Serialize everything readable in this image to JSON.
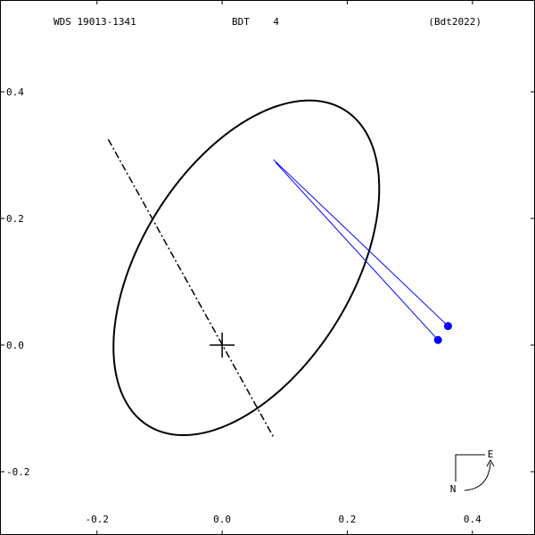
{
  "header": {
    "wds_id": "WDS 19013-1341",
    "discoverer": "BDT    4",
    "reference": "(Bdt2022)"
  },
  "compass": {
    "east_label": "E",
    "north_label": "N"
  },
  "chart_data": {
    "type": "scatter",
    "title": "",
    "xlabel": "",
    "ylabel": "",
    "xlim": [
      -0.355,
      0.5
    ],
    "ylim": [
      -0.3,
      0.545
    ],
    "grid": false,
    "x_ticks": [
      {
        "value": -0.2,
        "label": "-0.2"
      },
      {
        "value": 0.0,
        "label": "0.0"
      },
      {
        "value": 0.2,
        "label": "0.2"
      },
      {
        "value": 0.4,
        "label": "0.4"
      }
    ],
    "y_ticks": [
      {
        "value": 0.4,
        "label": "0.4"
      },
      {
        "value": 0.2,
        "label": "0.2"
      },
      {
        "value": 0.0,
        "label": "0.0"
      },
      {
        "value": -0.2,
        "label": "-0.2"
      }
    ],
    "primary": {
      "x": 0.0,
      "y": 0.0
    },
    "orbit_ellipse": {
      "center": {
        "x": 0.0387,
        "y": 0.122
      },
      "semi_major": 0.2946,
      "semi_minor": 0.1678,
      "rotation_deg": 57.5
    },
    "line_of_nodes": [
      {
        "x": -0.182,
        "y": 0.325
      },
      {
        "x": 0.083,
        "y": -0.147
      }
    ],
    "observations": [
      {
        "x": 0.361,
        "y": 0.03,
        "orbit_x": 0.082,
        "orbit_y": 0.293
      },
      {
        "x": 0.345,
        "y": 0.008,
        "orbit_x": 0.085,
        "orbit_y": 0.289
      }
    ],
    "colors": {
      "orbit": "#000000",
      "observation": "#0000ff",
      "residual_line": "#0000ff"
    }
  }
}
